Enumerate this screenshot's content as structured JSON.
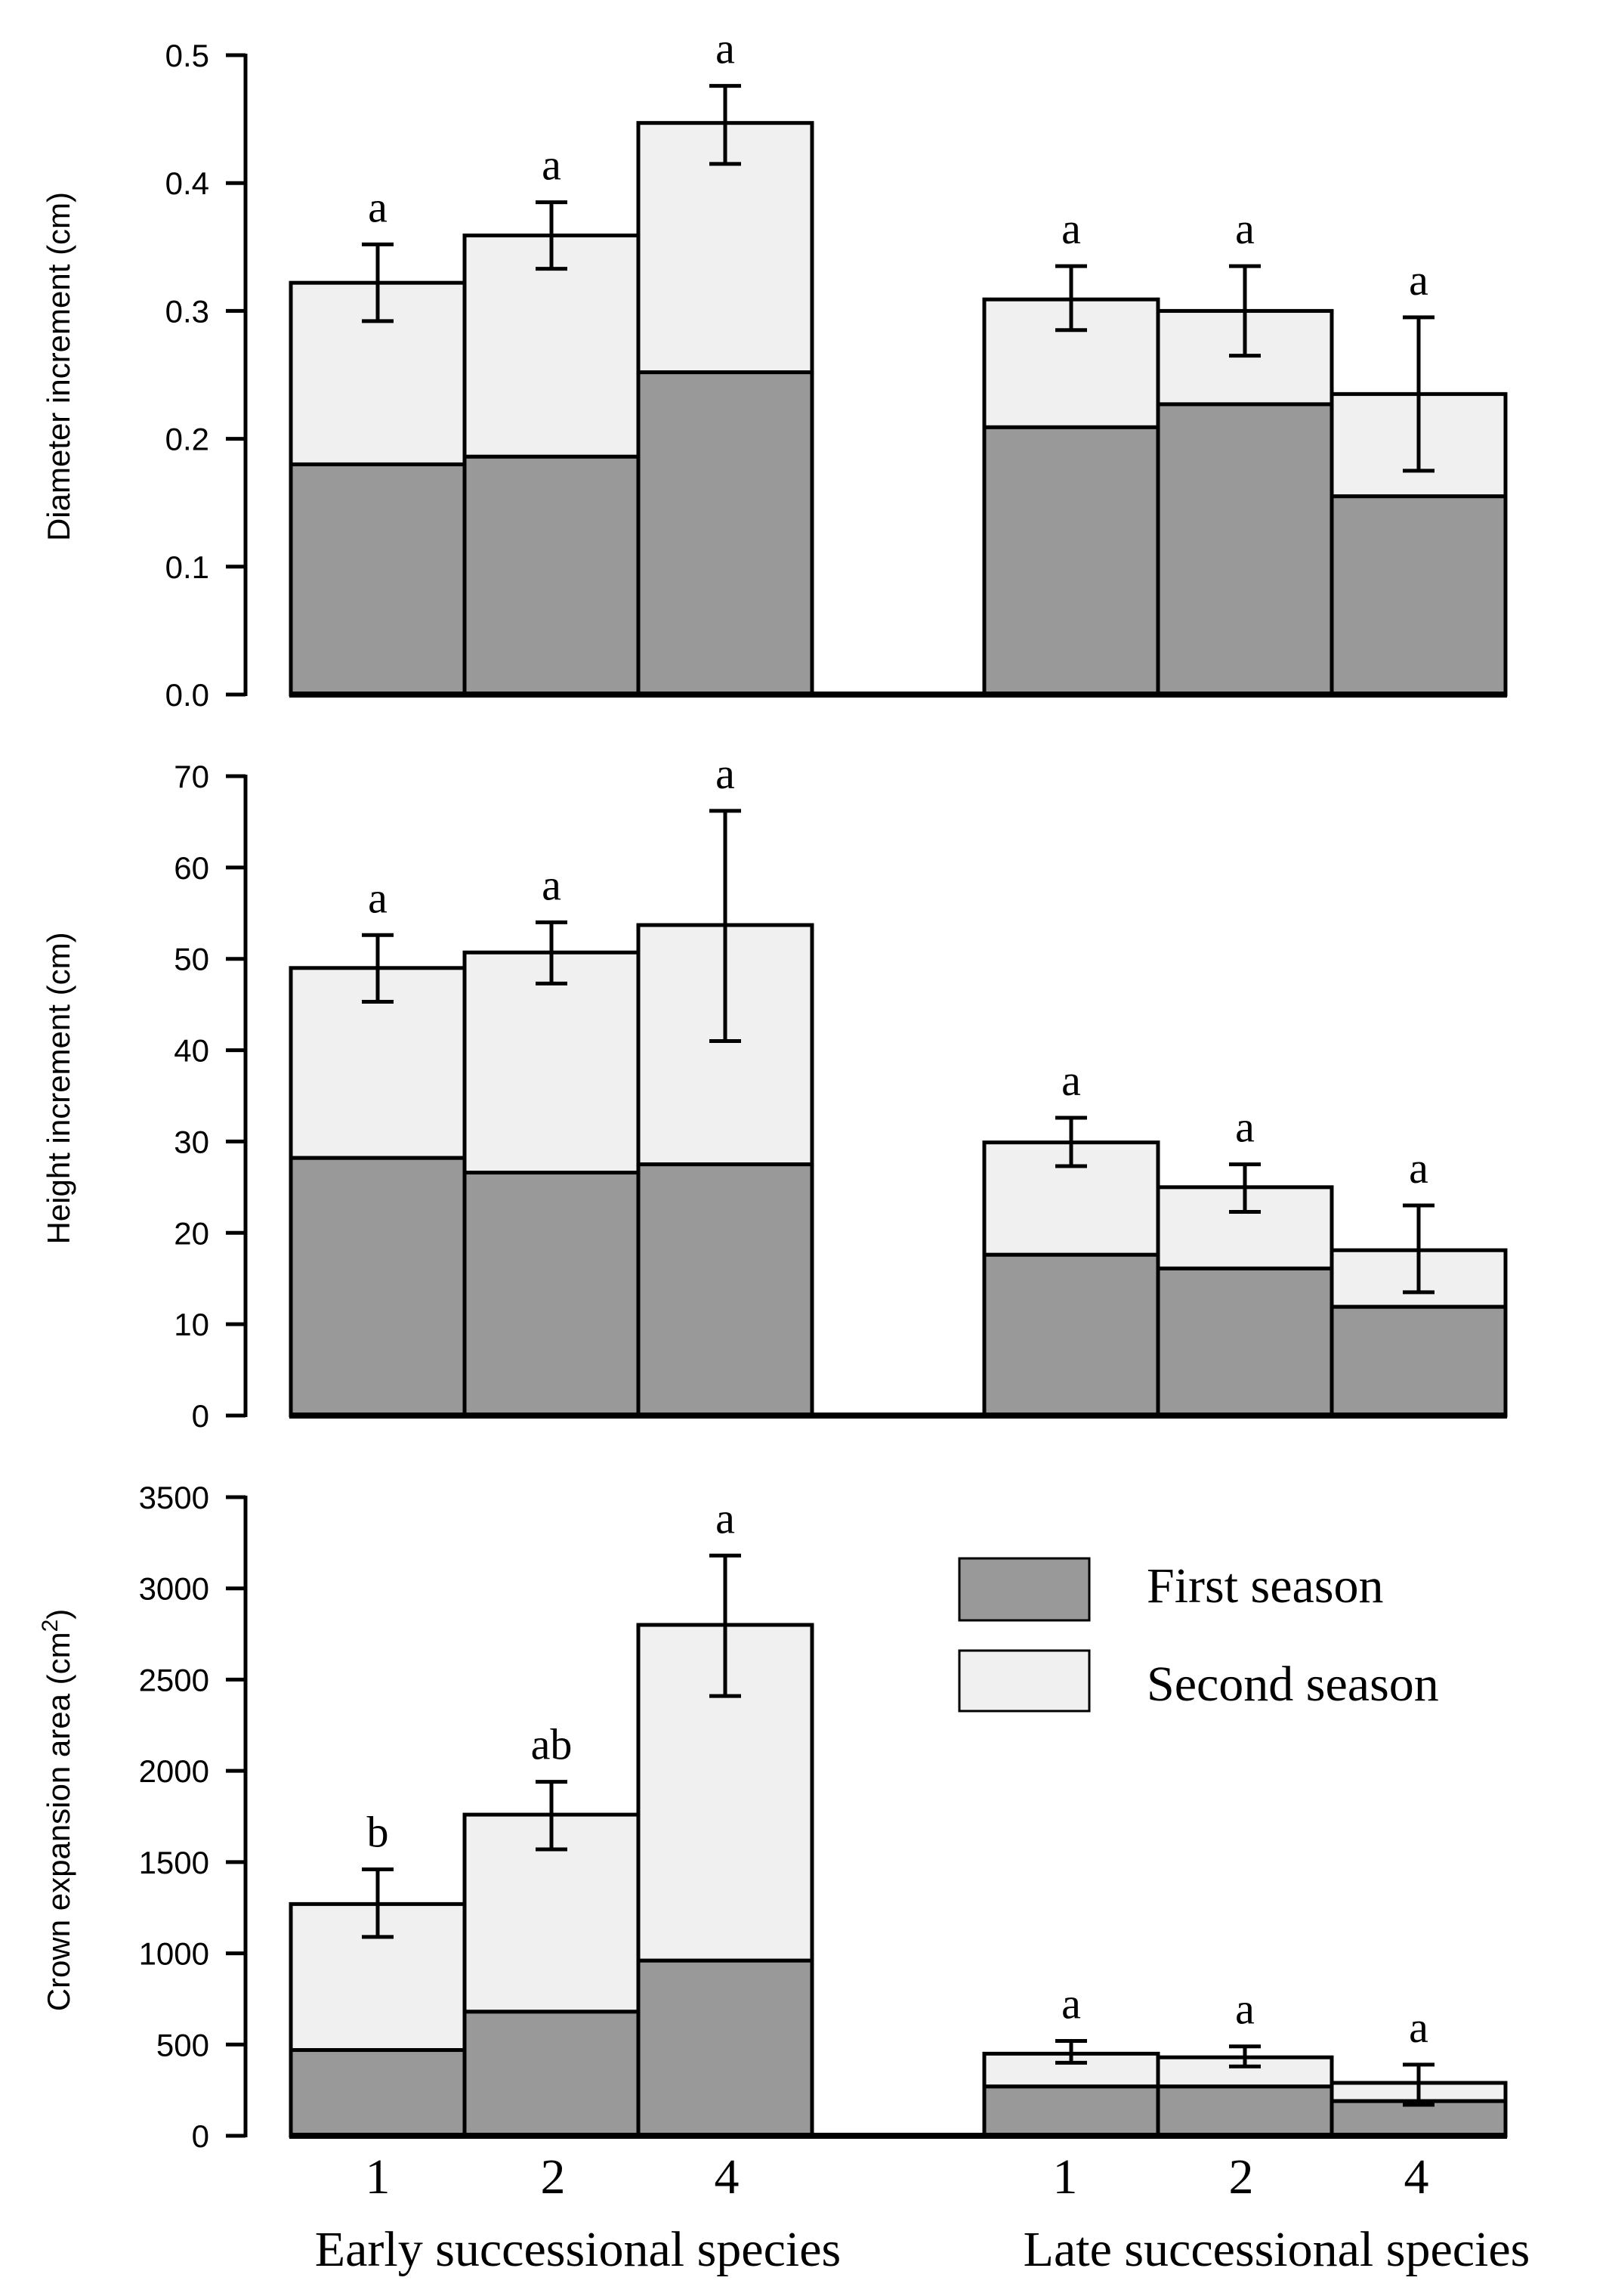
{
  "chart_data": [
    {
      "type": "bar",
      "stacked": true,
      "ylabel": "Diameter increment (cm)",
      "ylim": [
        0,
        0.5
      ],
      "yticks": [
        0.0,
        0.1,
        0.2,
        0.3,
        0.4,
        0.5
      ],
      "ytick_labels": [
        "0.0",
        "0.1",
        "0.2",
        "0.3",
        "0.4",
        "0.5"
      ],
      "categories": [
        "1",
        "2",
        "4",
        "1",
        "2",
        "4"
      ],
      "series": [
        {
          "name": "First season",
          "values": [
            0.18,
            0.186,
            0.252,
            0.209,
            0.227,
            0.155
          ]
        },
        {
          "name": "Second season",
          "values": [
            0.142,
            0.173,
            0.195,
            0.1,
            0.073,
            0.08
          ]
        }
      ],
      "totals": [
        0.322,
        0.359,
        0.447,
        0.309,
        0.3,
        0.235
      ],
      "error_upper": [
        0.352,
        0.385,
        0.476,
        0.335,
        0.335,
        0.295
      ],
      "error_lower": [
        0.292,
        0.333,
        0.415,
        0.285,
        0.265,
        0.175
      ],
      "significance": [
        "a",
        "a",
        "a",
        "a",
        "a",
        "a"
      ]
    },
    {
      "type": "bar",
      "stacked": true,
      "ylabel": "Height increment (cm)",
      "ylim": [
        0,
        70
      ],
      "yticks": [
        0,
        10,
        20,
        30,
        40,
        50,
        60,
        70
      ],
      "ytick_labels": [
        "0",
        "10",
        "20",
        "30",
        "40",
        "50",
        "60",
        "70"
      ],
      "categories": [
        "1",
        "2",
        "4",
        "1",
        "2",
        "4"
      ],
      "series": [
        {
          "name": "First season",
          "values": [
            28.2,
            26.6,
            27.5,
            17.6,
            16.1,
            11.9
          ]
        },
        {
          "name": "Second season",
          "values": [
            20.8,
            24.1,
            26.2,
            12.3,
            8.9,
            6.2
          ]
        }
      ],
      "totals": [
        49.0,
        50.7,
        53.7,
        29.9,
        25.0,
        18.1
      ],
      "error_upper": [
        52.6,
        54.0,
        66.2,
        32.6,
        27.5,
        23.0
      ],
      "error_lower": [
        45.3,
        47.3,
        41.0,
        27.3,
        22.3,
        13.5
      ],
      "significance": [
        "a",
        "a",
        "a",
        "a",
        "a",
        "a"
      ]
    },
    {
      "type": "bar",
      "stacked": true,
      "ylabel": "Crown expansion area (cm2)",
      "ylabel_parts": [
        "Crown expansion area (cm",
        "2",
        ")"
      ],
      "ylim": [
        0,
        3500
      ],
      "yticks": [
        0,
        500,
        1000,
        1500,
        2000,
        2500,
        3000,
        3500
      ],
      "ytick_labels": [
        "0",
        "500",
        "1000",
        "1500",
        "2000",
        "2500",
        "3000",
        "3500"
      ],
      "categories": [
        "1",
        "2",
        "4",
        "1",
        "2",
        "4"
      ],
      "series": [
        {
          "name": "First season",
          "values": [
            470,
            680,
            960,
            270,
            270,
            190
          ]
        },
        {
          "name": "Second season",
          "values": [
            800,
            1080,
            1840,
            180,
            160,
            100
          ]
        }
      ],
      "totals": [
        1270,
        1760,
        2800,
        450,
        430,
        290
      ],
      "error_upper": [
        1460,
        1940,
        3180,
        520,
        490,
        390
      ],
      "error_lower": [
        1090,
        1570,
        2410,
        400,
        380,
        170
      ],
      "significance": [
        "b",
        "ab",
        "a",
        "a",
        "a",
        "a"
      ]
    }
  ],
  "x_tick_labels": [
    "1",
    "2",
    "4",
    "1",
    "2",
    "4"
  ],
  "group_labels": [
    "Early successional species",
    "Late successional species"
  ],
  "legend": [
    {
      "name": "First season",
      "color": "#999999"
    },
    {
      "name": "Second season",
      "color": "#f0f0f0"
    }
  ],
  "colors": {
    "first_season": "#999999",
    "second_season": "#f0f0f0",
    "stroke": "#000000"
  }
}
